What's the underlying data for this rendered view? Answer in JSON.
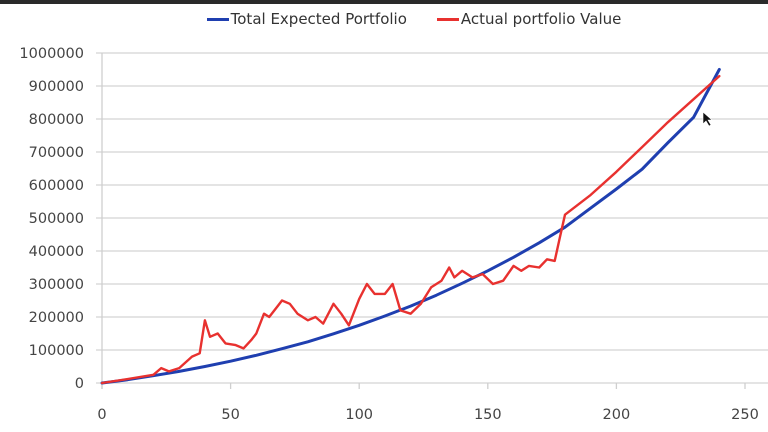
{
  "chart_data": {
    "type": "line",
    "title": "",
    "xlabel": "",
    "ylabel": "",
    "xlim": [
      0,
      250
    ],
    "ylim": [
      0,
      1000000
    ],
    "xticks": [
      0,
      50,
      100,
      150,
      200,
      250
    ],
    "yticks": [
      0,
      100000,
      200000,
      300000,
      400000,
      500000,
      600000,
      700000,
      800000,
      900000,
      1000000
    ],
    "grid": "horizontal",
    "legend_position": "top",
    "series": [
      {
        "name": "Total Expected Portfolio",
        "color": "#1f3fb0",
        "x": [
          0,
          10,
          20,
          30,
          40,
          50,
          60,
          70,
          80,
          90,
          100,
          110,
          120,
          130,
          140,
          150,
          160,
          170,
          180,
          190,
          200,
          210,
          220,
          230,
          240
        ],
        "y": [
          0,
          10000,
          22000,
          35000,
          50000,
          66000,
          84000,
          104000,
          125000,
          149000,
          175000,
          203000,
          233000,
          266000,
          302000,
          340000,
          381000,
          425000,
          472000,
          530000,
          588000,
          648000,
          728000,
          805000,
          950000
        ]
      },
      {
        "name": "Actual portfolio Value",
        "color": "#e8312f",
        "x": [
          0,
          10,
          20,
          23,
          26,
          30,
          35,
          38,
          40,
          42,
          45,
          48,
          52,
          55,
          58,
          60,
          63,
          65,
          68,
          70,
          73,
          76,
          80,
          83,
          86,
          90,
          93,
          96,
          100,
          103,
          106,
          110,
          113,
          116,
          120,
          124,
          128,
          132,
          135,
          137,
          140,
          144,
          148,
          152,
          156,
          160,
          163,
          166,
          170,
          173,
          176,
          178,
          180,
          190,
          200,
          210,
          220,
          230,
          240
        ],
        "y": [
          0,
          12000,
          25000,
          45000,
          35000,
          45000,
          80000,
          90000,
          190000,
          140000,
          150000,
          120000,
          115000,
          105000,
          130000,
          150000,
          210000,
          200000,
          230000,
          250000,
          240000,
          210000,
          190000,
          200000,
          180000,
          240000,
          210000,
          175000,
          255000,
          300000,
          270000,
          270000,
          300000,
          220000,
          210000,
          240000,
          290000,
          310000,
          350000,
          320000,
          340000,
          320000,
          330000,
          300000,
          310000,
          355000,
          340000,
          355000,
          350000,
          375000,
          370000,
          440000,
          510000,
          570000,
          640000,
          715000,
          790000,
          860000,
          930000
        ]
      }
    ]
  },
  "legend": {
    "series_0": "Total Expected Portfolio",
    "series_1": "Actual portfolio Value"
  },
  "axis": {
    "y_labels": [
      "0",
      "100000",
      "200000",
      "300000",
      "400000",
      "500000",
      "600000",
      "700000",
      "800000",
      "900000",
      "1000000"
    ],
    "x_labels": [
      "0",
      "50",
      "100",
      "150",
      "200",
      "250"
    ]
  }
}
